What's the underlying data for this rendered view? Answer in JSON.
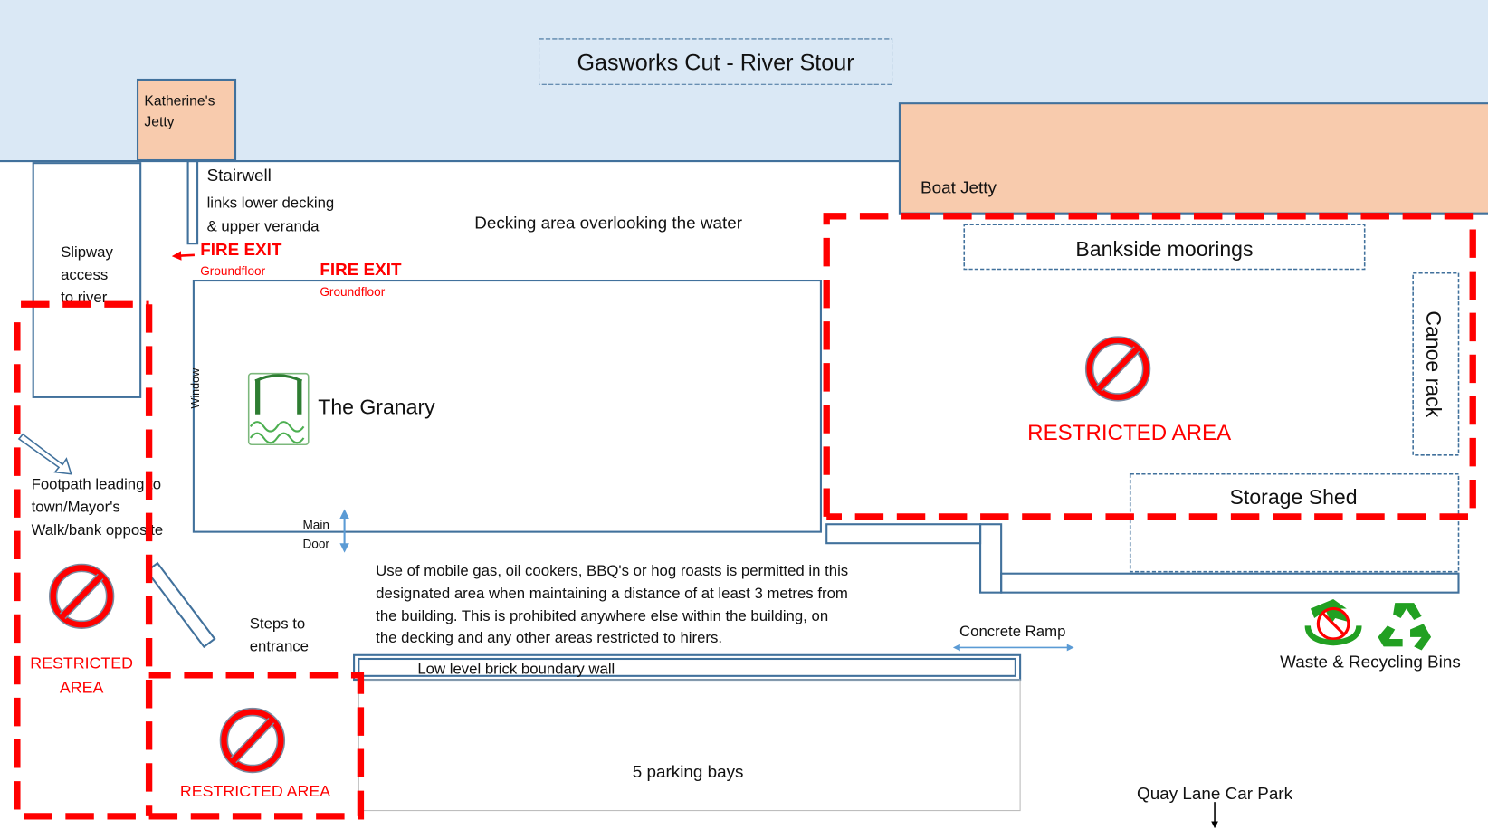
{
  "title": "Gasworks Cut - River Stour",
  "colors": {
    "water": "#dae8f5",
    "jetty": "#f8cbad",
    "outline": "#41719c",
    "restricted": "#ff0000",
    "logo": "#2e7d32",
    "bins": "#22a022"
  },
  "katherines_jetty": [
    "Katherine's",
    "Jetty"
  ],
  "boat_jetty": "Boat Jetty",
  "slipway": [
    "Slipway",
    "access",
    "to river"
  ],
  "stairwell": {
    "title": "Stairwell",
    "lines": [
      "links lower decking",
      "& upper veranda"
    ]
  },
  "fire_exits": [
    {
      "label": "FIRE EXIT",
      "sub": "Groundfloor"
    },
    {
      "label": "FIRE EXIT",
      "sub": "Groundfloor"
    }
  ],
  "decking": "Decking area overlooking the water",
  "granary": {
    "name": "The Granary",
    "window": "Window",
    "door": [
      "Main",
      "Door"
    ],
    "logo_icon": "granary-logo-icon"
  },
  "bankside": "Bankside moorings",
  "canoe_rack": "Canoe rack",
  "storage_shed": "Storage Shed",
  "restricted": {
    "right": "RESTRICTED AREA",
    "left": [
      "RESTRICTED",
      "AREA"
    ],
    "bottom": "RESTRICTED AREA",
    "icon": "no-entry-icon"
  },
  "footpath": [
    "Footpath leading to",
    "town/Mayor's",
    "Walk/bank opposite"
  ],
  "steps": [
    "Steps to",
    "entrance"
  ],
  "gas_notice": [
    "Use of mobile gas, oil cookers, BBQ's or hog roasts is permitted in this",
    "designated area when maintaining a distance of at least 3 metres from",
    "the building. This is prohibited anywhere else within the building, on",
    "the decking and any other areas restricted to hirers."
  ],
  "concrete_ramp": "Concrete Ramp",
  "bins": {
    "label": "Waste & Recycling Bins",
    "icons": [
      "no-waste-icon",
      "recycling-icon"
    ]
  },
  "wall": "Low level brick boundary wall",
  "parking": "5 parking bays",
  "car_park": "Quay Lane Car Park"
}
